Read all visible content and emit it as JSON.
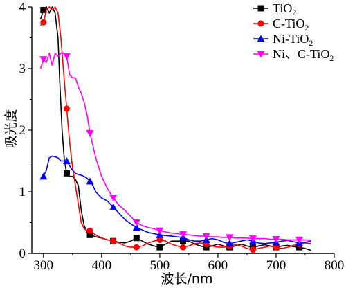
{
  "chart_data": {
    "type": "line",
    "title": "",
    "xlabel": "波长/nm",
    "ylabel": "吸光度",
    "xlim": [
      280,
      800
    ],
    "ylim": [
      0,
      4
    ],
    "x_ticks": [
      "300",
      "400",
      "500",
      "600",
      "700",
      "800"
    ],
    "y_ticks": [
      "0",
      "1",
      "2",
      "3",
      "4"
    ],
    "grid": false,
    "legend_position": "top-right",
    "series": [
      {
        "name": "TiO2",
        "label_main": "TiO",
        "label_sub": "2",
        "color": "#000000",
        "marker": "square",
        "points": [
          [
            295,
            3.8
          ],
          [
            300,
            3.95
          ],
          [
            305,
            4.0
          ],
          [
            310,
            3.9
          ],
          [
            315,
            4.0
          ],
          [
            320,
            3.9
          ],
          [
            325,
            3.5
          ],
          [
            328,
            2.8
          ],
          [
            332,
            2.0
          ],
          [
            336,
            1.5
          ],
          [
            340,
            1.3
          ],
          [
            345,
            1.25
          ],
          [
            350,
            1.25
          ],
          [
            355,
            1.2
          ],
          [
            360,
            1.1
          ],
          [
            365,
            0.7
          ],
          [
            370,
            0.45
          ],
          [
            375,
            0.35
          ],
          [
            380,
            0.3
          ],
          [
            390,
            0.27
          ],
          [
            400,
            0.25
          ],
          [
            410,
            0.22
          ],
          [
            420,
            0.2
          ],
          [
            430,
            0.18
          ],
          [
            440,
            0.17
          ],
          [
            450,
            0.2
          ],
          [
            460,
            0.25
          ],
          [
            470,
            0.2
          ],
          [
            480,
            0.15
          ],
          [
            490,
            0.12
          ],
          [
            500,
            0.1
          ],
          [
            510,
            0.15
          ],
          [
            520,
            0.2
          ],
          [
            530,
            0.2
          ],
          [
            540,
            0.2
          ],
          [
            550,
            0.2
          ],
          [
            560,
            0.15
          ],
          [
            570,
            0.12
          ],
          [
            580,
            0.1
          ],
          [
            590,
            0.12
          ],
          [
            600,
            0.15
          ],
          [
            610,
            0.12
          ],
          [
            620,
            0.1
          ],
          [
            630,
            0.12
          ],
          [
            640,
            0.15
          ],
          [
            650,
            0.12
          ],
          [
            660,
            0.1
          ],
          [
            670,
            0.12
          ],
          [
            680,
            0.14
          ],
          [
            690,
            0.12
          ],
          [
            700,
            0.1
          ],
          [
            710,
            0.12
          ],
          [
            720,
            0.13
          ],
          [
            730,
            0.11
          ],
          [
            740,
            0.1
          ],
          [
            750,
            0.08
          ],
          [
            760,
            0.05
          ]
        ],
        "markers_x": [
          300,
          340,
          380,
          420,
          460,
          500,
          540,
          580,
          620,
          660,
          700,
          740
        ]
      },
      {
        "name": "C-TiO2",
        "label_main": "C-TiO",
        "label_sub": "2",
        "color": "#ff0000",
        "marker": "circle",
        "points": [
          [
            295,
            3.7
          ],
          [
            300,
            3.75
          ],
          [
            305,
            3.95
          ],
          [
            310,
            4.0
          ],
          [
            315,
            3.95
          ],
          [
            320,
            4.0
          ],
          [
            325,
            3.9
          ],
          [
            330,
            3.5
          ],
          [
            335,
            2.9
          ],
          [
            340,
            2.35
          ],
          [
            345,
            1.8
          ],
          [
            350,
            1.4
          ],
          [
            355,
            1.1
          ],
          [
            360,
            0.8
          ],
          [
            365,
            0.5
          ],
          [
            370,
            0.4
          ],
          [
            375,
            0.37
          ],
          [
            380,
            0.37
          ],
          [
            385,
            0.33
          ],
          [
            390,
            0.3
          ],
          [
            400,
            0.25
          ],
          [
            410,
            0.22
          ],
          [
            420,
            0.2
          ],
          [
            430,
            0.17
          ],
          [
            440,
            0.12
          ],
          [
            450,
            0.1
          ],
          [
            460,
            0.1
          ],
          [
            470,
            0.12
          ],
          [
            480,
            0.17
          ],
          [
            490,
            0.2
          ],
          [
            500,
            0.22
          ],
          [
            510,
            0.2
          ],
          [
            520,
            0.15
          ],
          [
            530,
            0.12
          ],
          [
            540,
            0.1
          ],
          [
            550,
            0.12
          ],
          [
            560,
            0.16
          ],
          [
            570,
            0.17
          ],
          [
            580,
            0.15
          ],
          [
            590,
            0.12
          ],
          [
            600,
            0.1
          ],
          [
            610,
            0.1
          ],
          [
            620,
            0.12
          ],
          [
            630,
            0.14
          ],
          [
            640,
            0.12
          ],
          [
            650,
            0.08
          ],
          [
            660,
            0.06
          ],
          [
            670,
            0.08
          ],
          [
            680,
            0.1
          ],
          [
            690,
            0.12
          ],
          [
            700,
            0.1
          ],
          [
            710,
            0.08
          ],
          [
            720,
            0.1
          ],
          [
            730,
            0.13
          ],
          [
            740,
            0.15
          ],
          [
            750,
            0.17
          ],
          [
            760,
            0.16
          ]
        ],
        "markers_x": [
          300,
          340,
          380,
          420,
          460,
          500,
          540,
          580,
          620,
          660,
          700,
          740
        ]
      },
      {
        "name": "Ni-TiO2",
        "label_main": "Ni-TiO",
        "label_sub": "2",
        "color": "#0000ff",
        "marker": "triangle-up",
        "points": [
          [
            295,
            1.2
          ],
          [
            300,
            1.25
          ],
          [
            305,
            1.35
          ],
          [
            310,
            1.55
          ],
          [
            315,
            1.58
          ],
          [
            320,
            1.57
          ],
          [
            325,
            1.55
          ],
          [
            330,
            1.5
          ],
          [
            335,
            1.5
          ],
          [
            340,
            1.5
          ],
          [
            345,
            1.42
          ],
          [
            350,
            1.35
          ],
          [
            355,
            1.3
          ],
          [
            360,
            1.28
          ],
          [
            365,
            1.27
          ],
          [
            370,
            1.25
          ],
          [
            375,
            1.22
          ],
          [
            380,
            1.17
          ],
          [
            385,
            1.1
          ],
          [
            390,
            1.0
          ],
          [
            400,
            0.9
          ],
          [
            410,
            0.85
          ],
          [
            420,
            0.75
          ],
          [
            430,
            0.65
          ],
          [
            440,
            0.55
          ],
          [
            450,
            0.48
          ],
          [
            460,
            0.42
          ],
          [
            470,
            0.38
          ],
          [
            480,
            0.34
          ],
          [
            490,
            0.32
          ],
          [
            500,
            0.3
          ],
          [
            510,
            0.29
          ],
          [
            520,
            0.28
          ],
          [
            530,
            0.27
          ],
          [
            540,
            0.26
          ],
          [
            550,
            0.22
          ],
          [
            560,
            0.2
          ],
          [
            570,
            0.2
          ],
          [
            580,
            0.22
          ],
          [
            590,
            0.24
          ],
          [
            600,
            0.22
          ],
          [
            610,
            0.18
          ],
          [
            620,
            0.16
          ],
          [
            630,
            0.18
          ],
          [
            640,
            0.2
          ],
          [
            650,
            0.22
          ],
          [
            660,
            0.2
          ],
          [
            670,
            0.17
          ],
          [
            680,
            0.16
          ],
          [
            690,
            0.17
          ],
          [
            700,
            0.18
          ],
          [
            710,
            0.2
          ],
          [
            720,
            0.21
          ],
          [
            730,
            0.19
          ],
          [
            740,
            0.17
          ],
          [
            750,
            0.18
          ],
          [
            760,
            0.2
          ]
        ],
        "markers_x": [
          300,
          340,
          380,
          420,
          460,
          500,
          540,
          580,
          620,
          660,
          700,
          740
        ]
      },
      {
        "name": "Ni、C-TiO2",
        "label_main": "Ni、C-TiO",
        "label_sub": "2",
        "color": "#ff00ff",
        "marker": "triangle-down",
        "points": [
          [
            295,
            3.0
          ],
          [
            300,
            3.15
          ],
          [
            305,
            3.1
          ],
          [
            310,
            3.25
          ],
          [
            315,
            3.05
          ],
          [
            320,
            3.25
          ],
          [
            325,
            3.2
          ],
          [
            330,
            3.25
          ],
          [
            335,
            3.25
          ],
          [
            340,
            3.2
          ],
          [
            345,
            2.9
          ],
          [
            350,
            2.85
          ],
          [
            355,
            2.85
          ],
          [
            360,
            2.7
          ],
          [
            365,
            2.6
          ],
          [
            370,
            2.45
          ],
          [
            375,
            2.25
          ],
          [
            380,
            1.95
          ],
          [
            385,
            1.75
          ],
          [
            390,
            1.55
          ],
          [
            400,
            1.25
          ],
          [
            410,
            1.05
          ],
          [
            420,
            0.9
          ],
          [
            430,
            0.78
          ],
          [
            440,
            0.7
          ],
          [
            450,
            0.6
          ],
          [
            460,
            0.5
          ],
          [
            470,
            0.45
          ],
          [
            480,
            0.42
          ],
          [
            490,
            0.4
          ],
          [
            500,
            0.37
          ],
          [
            510,
            0.35
          ],
          [
            520,
            0.33
          ],
          [
            530,
            0.32
          ],
          [
            540,
            0.31
          ],
          [
            550,
            0.3
          ],
          [
            560,
            0.29
          ],
          [
            570,
            0.28
          ],
          [
            580,
            0.28
          ],
          [
            590,
            0.27
          ],
          [
            600,
            0.27
          ],
          [
            610,
            0.26
          ],
          [
            620,
            0.26
          ],
          [
            630,
            0.25
          ],
          [
            640,
            0.25
          ],
          [
            650,
            0.25
          ],
          [
            660,
            0.24
          ],
          [
            670,
            0.24
          ],
          [
            680,
            0.24
          ],
          [
            690,
            0.23
          ],
          [
            700,
            0.23
          ],
          [
            710,
            0.23
          ],
          [
            720,
            0.22
          ],
          [
            730,
            0.22
          ],
          [
            740,
            0.22
          ],
          [
            750,
            0.22
          ],
          [
            760,
            0.21
          ]
        ],
        "markers_x": [
          300,
          340,
          380,
          420,
          460,
          500,
          540,
          580,
          620,
          660,
          700,
          740
        ]
      }
    ]
  }
}
